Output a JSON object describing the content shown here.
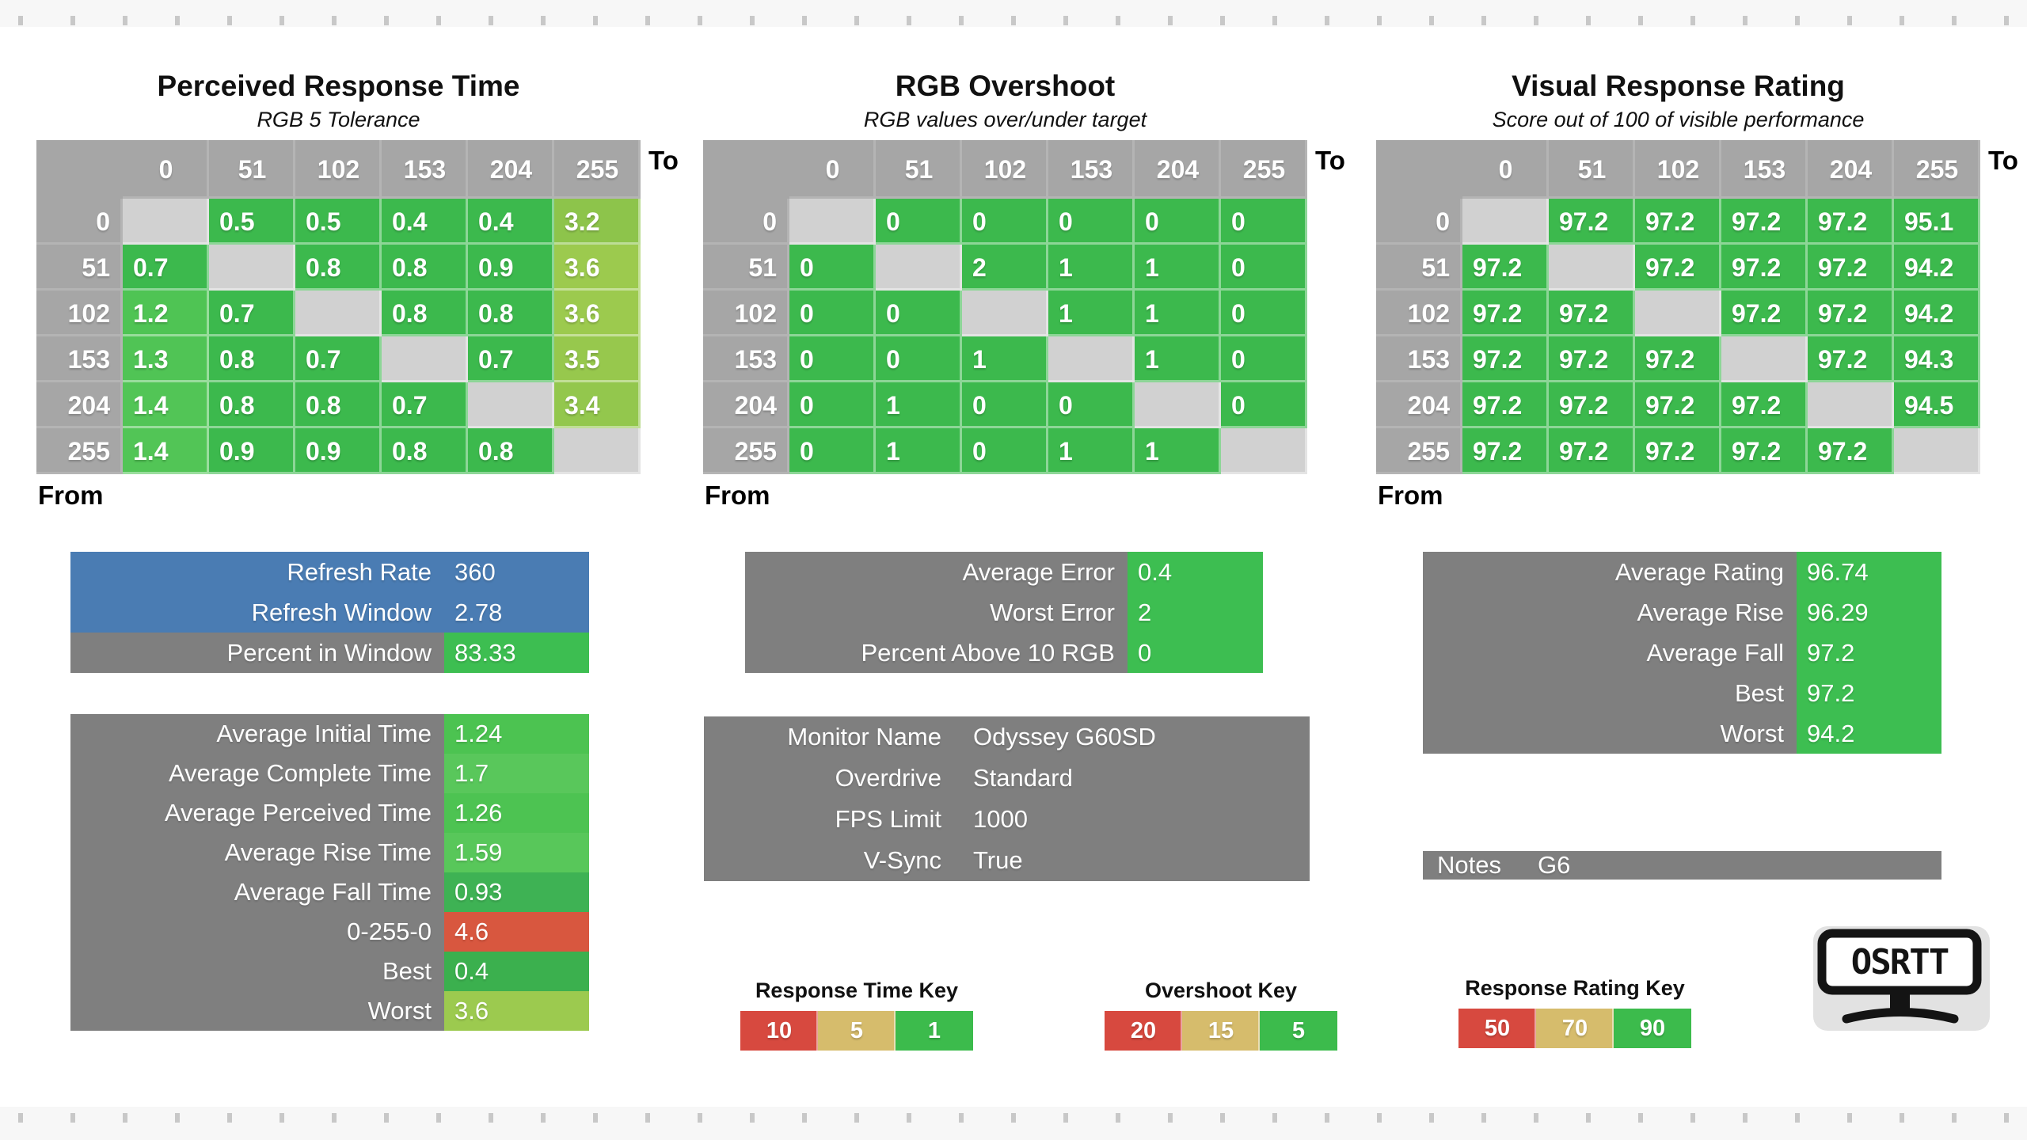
{
  "labels": {
    "to": "To",
    "from": "From"
  },
  "levels": [
    "0",
    "51",
    "102",
    "153",
    "204",
    "255"
  ],
  "palette": {
    "green": "#3CB94D",
    "bright_green": "#4FC454",
    "value_green": "#3DBE51",
    "header_gray": "#A6A6A6",
    "diagonal_gray": "#D1D1D1",
    "panel_gray": "#7F7F7F",
    "blue": "#4A7CB3",
    "red": "#D7493F",
    "tan": "#D6BC6C",
    "key_green": "#3CBB4C"
  },
  "heatmaps": [
    {
      "title": "Perceived Response Time",
      "subtitle": "RGB 5 Tolerance",
      "rows": [
        [
          "",
          "0.5",
          "0.5",
          "0.4",
          "0.4",
          "3.2"
        ],
        [
          "0.7",
          "",
          "0.8",
          "0.8",
          "0.9",
          "3.6"
        ],
        [
          "1.2",
          "0.7",
          "",
          "0.8",
          "0.8",
          "3.6"
        ],
        [
          "1.3",
          "0.8",
          "0.7",
          "",
          "0.7",
          "3.5"
        ],
        [
          "1.4",
          "0.8",
          "0.8",
          "0.7",
          "",
          "3.4"
        ],
        [
          "1.4",
          "0.9",
          "0.9",
          "0.8",
          "0.8",
          ""
        ]
      ],
      "colors": [
        [
          null,
          "#3CB94D",
          "#3CB94D",
          "#3CB94D",
          "#3CB94D",
          "#8DC44B"
        ],
        [
          "#3CB94D",
          null,
          "#3CB94D",
          "#3CB94D",
          "#3CB94D",
          "#9CCA4E"
        ],
        [
          "#4FC454",
          "#3CB94D",
          null,
          "#3CB94D",
          "#3CB94D",
          "#9CCA4E"
        ],
        [
          "#50C455",
          "#3CB94D",
          "#3CB94D",
          null,
          "#3CB94D",
          "#97C84D"
        ],
        [
          "#52C556",
          "#3CB94D",
          "#3CB94D",
          "#3CB94D",
          null,
          "#93C74D"
        ],
        [
          "#52C556",
          "#3CB94D",
          "#3CB94D",
          "#3CB94D",
          "#3CB94D",
          null
        ]
      ]
    },
    {
      "title": "RGB Overshoot",
      "subtitle": "RGB values over/under target",
      "rows": [
        [
          "",
          "0",
          "0",
          "0",
          "0",
          "0"
        ],
        [
          "0",
          "",
          "2",
          "1",
          "1",
          "0"
        ],
        [
          "0",
          "0",
          "",
          "1",
          "1",
          "0"
        ],
        [
          "0",
          "0",
          "1",
          "",
          "1",
          "0"
        ],
        [
          "0",
          "1",
          "0",
          "0",
          "",
          "0"
        ],
        [
          "0",
          "1",
          "0",
          "1",
          "1",
          ""
        ]
      ],
      "colors": [
        [
          null,
          "#3CB94D",
          "#3CB94D",
          "#3CB94D",
          "#3CB94D",
          "#3CB94D"
        ],
        [
          "#3CB94D",
          null,
          "#3CB94D",
          "#3CB94D",
          "#3CB94D",
          "#3CB94D"
        ],
        [
          "#3CB94D",
          "#3CB94D",
          null,
          "#3CB94D",
          "#3CB94D",
          "#3CB94D"
        ],
        [
          "#3CB94D",
          "#3CB94D",
          "#3CB94D",
          null,
          "#3CB94D",
          "#3CB94D"
        ],
        [
          "#3CB94D",
          "#3CB94D",
          "#3CB94D",
          "#3CB94D",
          null,
          "#3CB94D"
        ],
        [
          "#3CB94D",
          "#3CB94D",
          "#3CB94D",
          "#3CB94D",
          "#3CB94D",
          null
        ]
      ]
    },
    {
      "title": "Visual Response Rating",
      "subtitle": "Score out of 100 of visible performance",
      "rows": [
        [
          "",
          "97.2",
          "97.2",
          "97.2",
          "97.2",
          "95.1"
        ],
        [
          "97.2",
          "",
          "97.2",
          "97.2",
          "97.2",
          "94.2"
        ],
        [
          "97.2",
          "97.2",
          "",
          "97.2",
          "97.2",
          "94.2"
        ],
        [
          "97.2",
          "97.2",
          "97.2",
          "",
          "97.2",
          "94.3"
        ],
        [
          "97.2",
          "97.2",
          "97.2",
          "97.2",
          "",
          "94.5"
        ],
        [
          "97.2",
          "97.2",
          "97.2",
          "97.2",
          "97.2",
          ""
        ]
      ],
      "colors": [
        [
          null,
          "#3CB94D",
          "#3CB94D",
          "#3CB94D",
          "#3CB94D",
          "#3CB94D"
        ],
        [
          "#3CB94D",
          null,
          "#3CB94D",
          "#3CB94D",
          "#3CB94D",
          "#3CB94D"
        ],
        [
          "#3CB94D",
          "#3CB94D",
          null,
          "#3CB94D",
          "#3CB94D",
          "#3CB94D"
        ],
        [
          "#3CB94D",
          "#3CB94D",
          "#3CB94D",
          null,
          "#3CB94D",
          "#3CB94D"
        ],
        [
          "#3CB94D",
          "#3CB94D",
          "#3CB94D",
          "#3CB94D",
          null,
          "#3CB94D"
        ],
        [
          "#3CB94D",
          "#3CB94D",
          "#3CB94D",
          "#3CB94D",
          "#3CB94D",
          null
        ]
      ]
    }
  ],
  "panels": {
    "refresh": {
      "rows": [
        {
          "label": "Refresh Rate",
          "value": "360",
          "label_bg": "#4A7CB3",
          "value_bg": "#4A7CB3"
        },
        {
          "label": "Refresh Window",
          "value": "2.78",
          "label_bg": "#4A7CB3",
          "value_bg": "#4A7CB3"
        },
        {
          "label": "Percent in Window",
          "value": "83.33",
          "label_bg": "#7F7F7F",
          "value_bg": "#3DBE51"
        }
      ]
    },
    "error": {
      "rows": [
        {
          "label": "Average Error",
          "value": "0.4",
          "label_bg": "#7F7F7F",
          "value_bg": "#3DBE51"
        },
        {
          "label": "Worst Error",
          "value": "2",
          "label_bg": "#7F7F7F",
          "value_bg": "#3DBE51"
        },
        {
          "label": "Percent Above 10 RGB",
          "value": "0",
          "label_bg": "#7F7F7F",
          "value_bg": "#3DBE51"
        }
      ]
    },
    "rating": {
      "rows": [
        {
          "label": "Average Rating",
          "value": "96.74",
          "label_bg": "#7F7F7F",
          "value_bg": "#3DBE51"
        },
        {
          "label": "Average Rise",
          "value": "96.29",
          "label_bg": "#7F7F7F",
          "value_bg": "#3DBE51"
        },
        {
          "label": "Average Fall",
          "value": "97.2",
          "label_bg": "#7F7F7F",
          "value_bg": "#3DBE51"
        },
        {
          "label": "Best",
          "value": "97.2",
          "label_bg": "#7F7F7F",
          "value_bg": "#3DBE51"
        },
        {
          "label": "Worst",
          "value": "94.2",
          "label_bg": "#7F7F7F",
          "value_bg": "#3DBE51"
        }
      ]
    },
    "stats": {
      "rows": [
        {
          "label": "Average Initial Time",
          "value": "1.24",
          "label_bg": "#7F7F7F",
          "value_bg": "#4CC351"
        },
        {
          "label": "Average Complete Time",
          "value": "1.7",
          "label_bg": "#7F7F7F",
          "value_bg": "#59C75B"
        },
        {
          "label": "Average Perceived Time",
          "value": "1.26",
          "label_bg": "#7F7F7F",
          "value_bg": "#4DC352"
        },
        {
          "label": "Average Rise Time",
          "value": "1.59",
          "label_bg": "#7F7F7F",
          "value_bg": "#58C75A"
        },
        {
          "label": "Average Fall Time",
          "value": "0.93",
          "label_bg": "#7F7F7F",
          "value_bg": "#3EB254"
        },
        {
          "label": "0-255-0",
          "value": "4.6",
          "label_bg": "#7F7F7F",
          "value_bg": "#D8573F"
        },
        {
          "label": "Best",
          "value": "0.4",
          "label_bg": "#7F7F7F",
          "value_bg": "#3BB04E"
        },
        {
          "label": "Worst",
          "value": "3.6",
          "label_bg": "#7F7F7F",
          "value_bg": "#9CCA4F"
        }
      ]
    },
    "monitor": {
      "rows": [
        {
          "label": "Monitor Name",
          "value": "Odyssey G60SD",
          "label_bg": "#7F7F7F",
          "value_bg": "#7F7F7F"
        },
        {
          "label": "Overdrive",
          "value": "Standard",
          "label_bg": "#7F7F7F",
          "value_bg": "#7F7F7F"
        },
        {
          "label": "FPS Limit",
          "value": "1000",
          "label_bg": "#7F7F7F",
          "value_bg": "#7F7F7F"
        },
        {
          "label": "V-Sync",
          "value": "True",
          "label_bg": "#7F7F7F",
          "value_bg": "#7F7F7F"
        }
      ]
    },
    "notes": {
      "rows": [
        {
          "label": "Notes",
          "value": "G6",
          "label_bg": "#7F7F7F",
          "value_bg": "#7F7F7F"
        }
      ]
    }
  },
  "keys": [
    {
      "title": "Response Time Key",
      "cells": [
        {
          "v": "10",
          "c": "#D7493F"
        },
        {
          "v": "5",
          "c": "#D6BC6C"
        },
        {
          "v": "1",
          "c": "#3CBB4C"
        }
      ]
    },
    {
      "title": "Overshoot Key",
      "cells": [
        {
          "v": "20",
          "c": "#D7493F"
        },
        {
          "v": "15",
          "c": "#D6BC6C"
        },
        {
          "v": "5",
          "c": "#3CBB4C"
        }
      ]
    },
    {
      "title": "Response Rating Key",
      "cells": [
        {
          "v": "50",
          "c": "#D7493F"
        },
        {
          "v": "70",
          "c": "#D6BC6C"
        },
        {
          "v": "90",
          "c": "#3CBB4C"
        }
      ]
    }
  ],
  "logo": {
    "text": "OSRTT"
  }
}
